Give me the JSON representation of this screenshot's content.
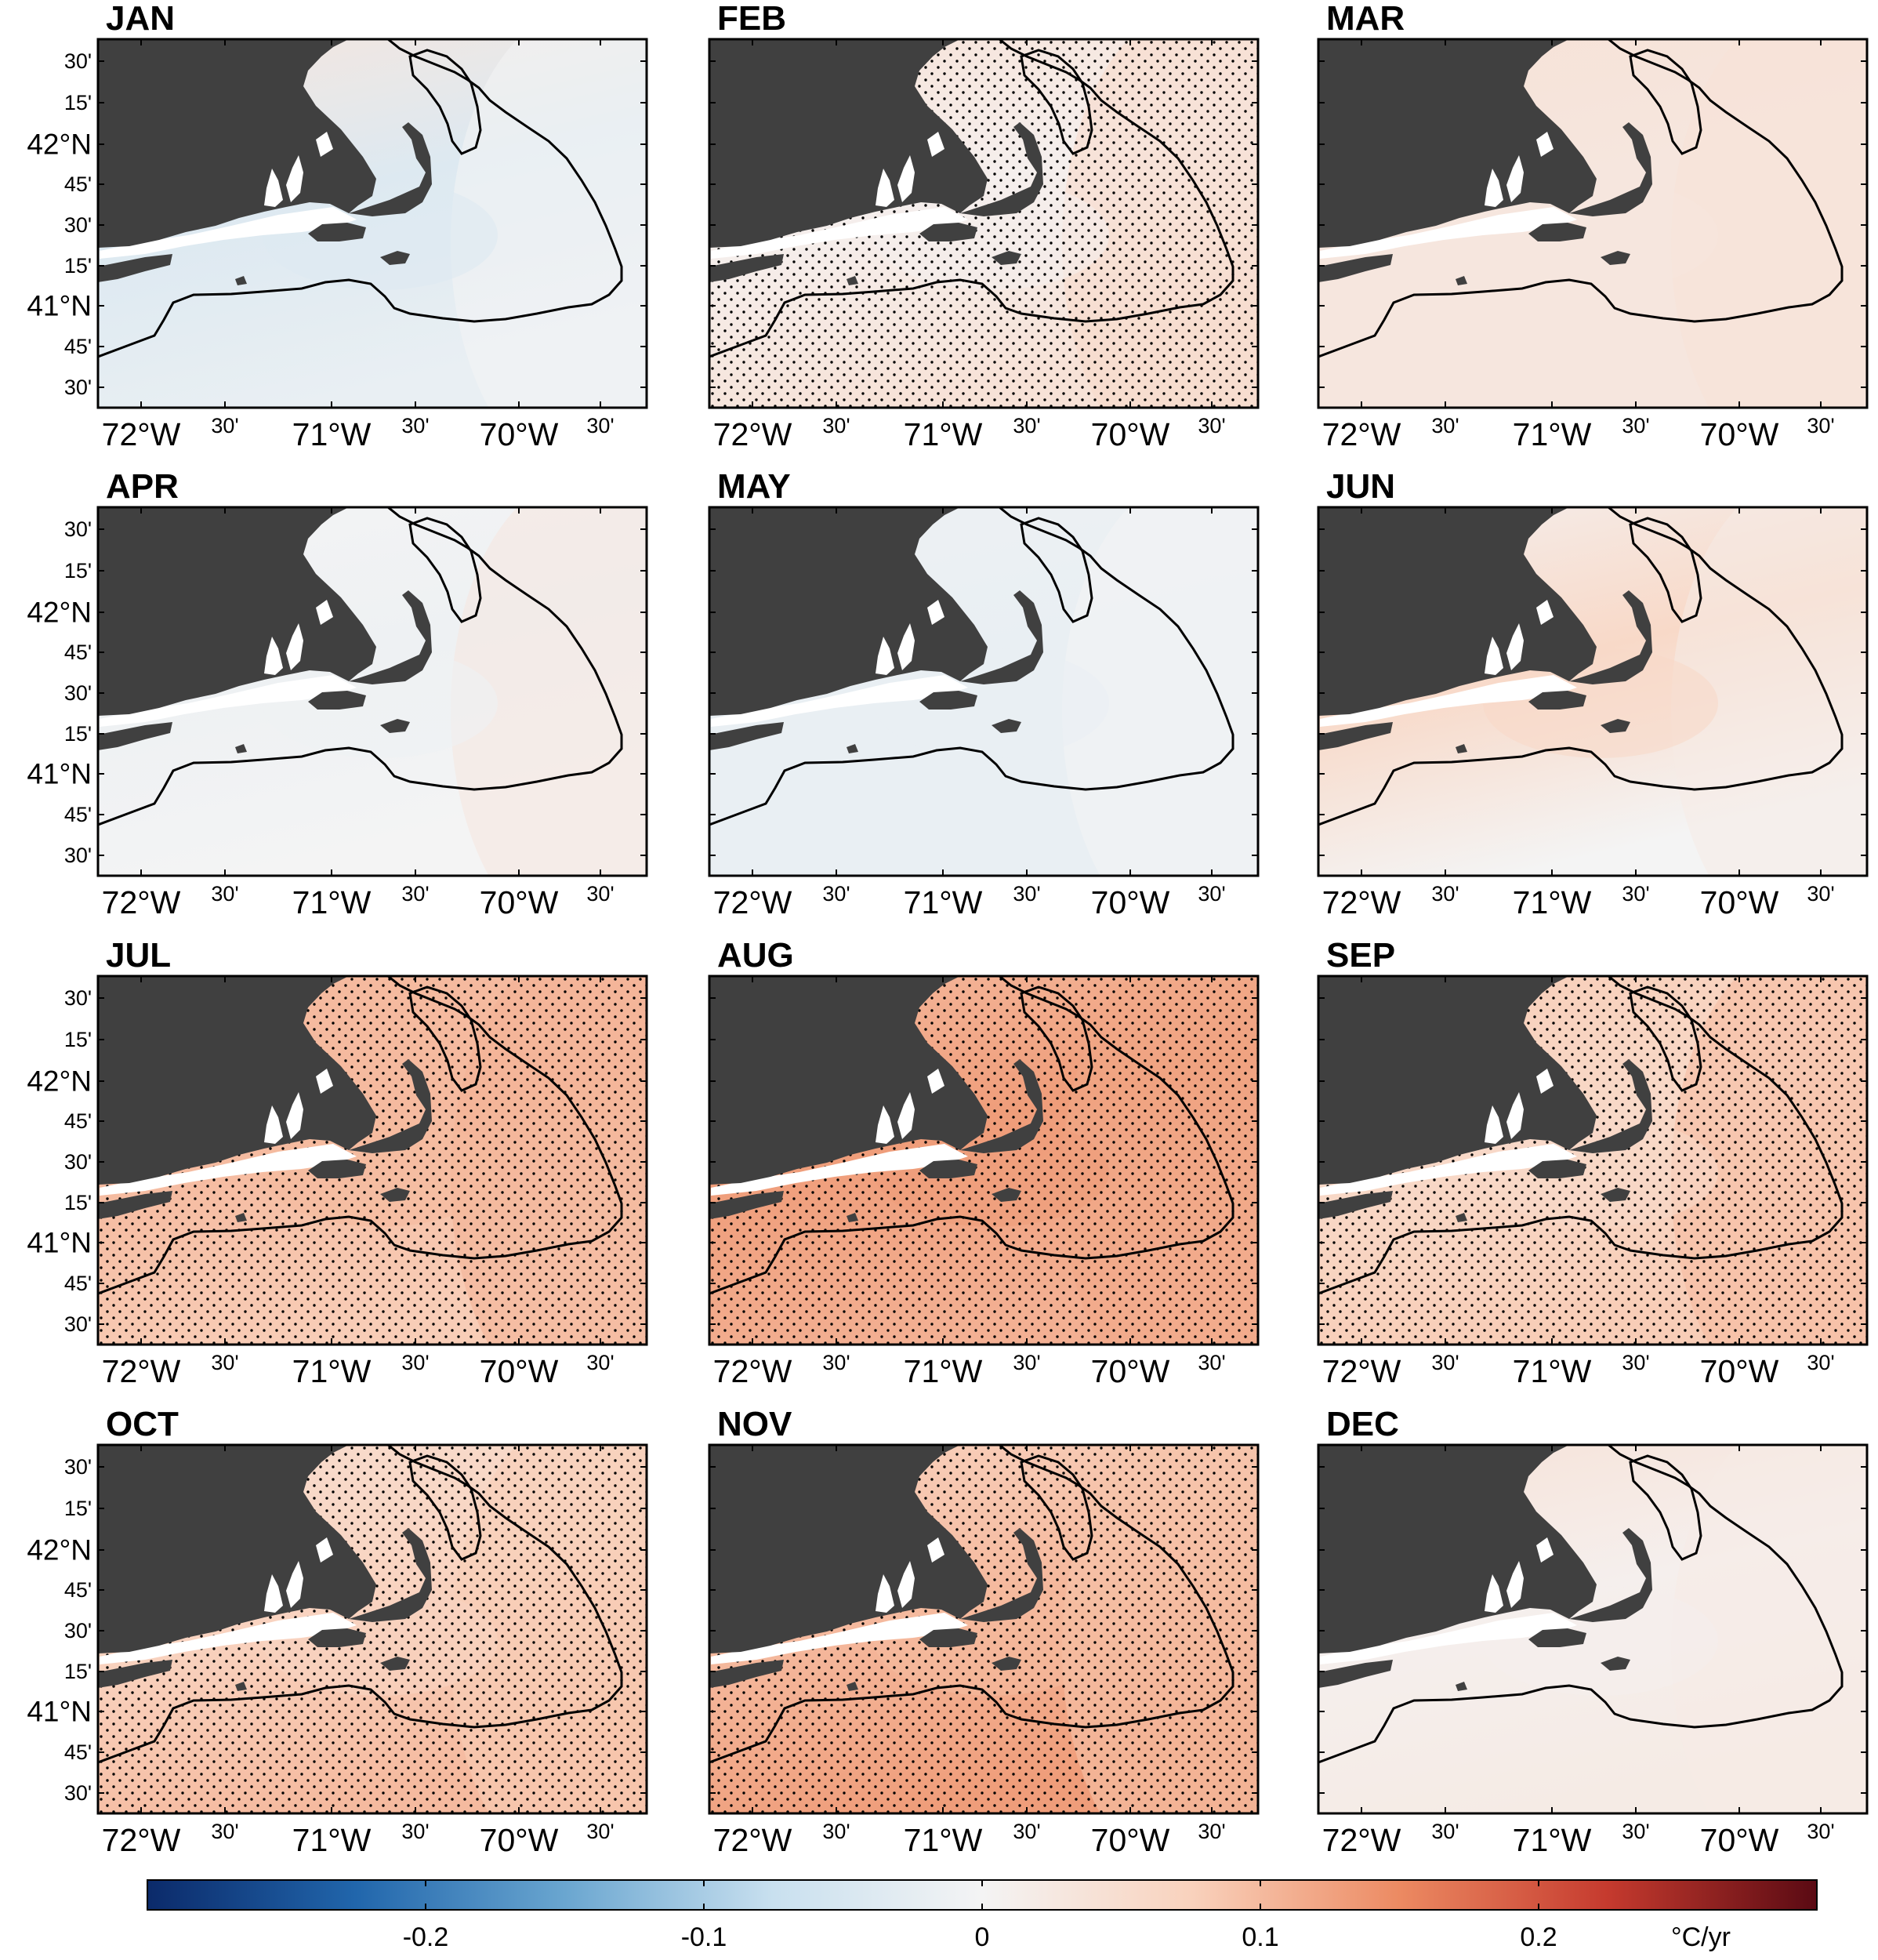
{
  "figure": {
    "months": [
      "JAN",
      "FEB",
      "MAR",
      "APR",
      "MAY",
      "JUN",
      "JUL",
      "AUG",
      "SEP",
      "OCT",
      "NOV",
      "DEC"
    ],
    "lat_ticks": [
      {
        "label": "30'",
        "major": false
      },
      {
        "label": "15'",
        "major": false
      },
      {
        "label": "42°N",
        "major": true
      },
      {
        "label": "45'",
        "major": false
      },
      {
        "label": "30'",
        "major": false
      },
      {
        "label": "15'",
        "major": false
      },
      {
        "label": "41°N",
        "major": true
      },
      {
        "label": "45'",
        "major": false
      },
      {
        "label": "30'",
        "major": false
      }
    ],
    "lon_ticks": [
      {
        "label": "72°W",
        "major": true
      },
      {
        "label": "30'",
        "major": false
      },
      {
        "label": "71°W",
        "major": true
      },
      {
        "label": "30'",
        "major": false
      },
      {
        "label": "70°W",
        "major": true
      },
      {
        "label": "30'",
        "major": false
      }
    ],
    "colorbar": {
      "unit": "°C/yr",
      "range": [
        -0.3,
        0.3
      ],
      "ticks": [
        {
          "value": -0.2,
          "label": "-0.2"
        },
        {
          "value": -0.1,
          "label": "-0.1"
        },
        {
          "value": 0,
          "label": "0"
        },
        {
          "value": 0.1,
          "label": "0.1"
        },
        {
          "value": 0.2,
          "label": "0.2"
        }
      ],
      "colors": [
        "#0b2a6a",
        "#2166ac",
        "#6aa6d0",
        "#c9e0ef",
        "#f4f4f4",
        "#f9d2bd",
        "#ec8a62",
        "#c53a2e",
        "#5a0a13"
      ]
    },
    "land_color": "#404040",
    "trends": {
      "JAN": {
        "north": 0.03,
        "mid": -0.04,
        "south": -0.02,
        "east": 0.0,
        "stipple": false
      },
      "FEB": {
        "north": 0.04,
        "mid": 0.01,
        "south": 0.04,
        "east": 0.06,
        "stipple": true
      },
      "MAR": {
        "north": 0.04,
        "mid": 0.03,
        "south": 0.03,
        "east": 0.04,
        "stipple": false
      },
      "APR": {
        "north": 0.0,
        "mid": -0.01,
        "south": 0.0,
        "east": 0.03,
        "stipple": false
      },
      "MAY": {
        "north": -0.01,
        "mid": -0.02,
        "south": -0.02,
        "east": 0.0,
        "stipple": false
      },
      "JUN": {
        "north": 0.01,
        "mid": 0.06,
        "south": 0.0,
        "east": 0.02,
        "stipple": false
      },
      "JUL": {
        "north": 0.1,
        "mid": 0.1,
        "south": 0.08,
        "east": 0.11,
        "stipple": true
      },
      "AUG": {
        "north": 0.1,
        "mid": 0.13,
        "south": 0.11,
        "east": 0.12,
        "stipple": true
      },
      "SEP": {
        "north": 0.08,
        "mid": 0.06,
        "south": 0.08,
        "east": 0.1,
        "stipple": true
      },
      "OCT": {
        "north": 0.05,
        "mid": 0.07,
        "south": 0.1,
        "east": 0.08,
        "stipple": true
      },
      "NOV": {
        "north": 0.07,
        "mid": 0.1,
        "south": 0.13,
        "east": 0.09,
        "stipple": true
      },
      "DEC": {
        "north": 0.04,
        "mid": 0.01,
        "south": 0.02,
        "east": 0.02,
        "stipple": false
      }
    }
  }
}
